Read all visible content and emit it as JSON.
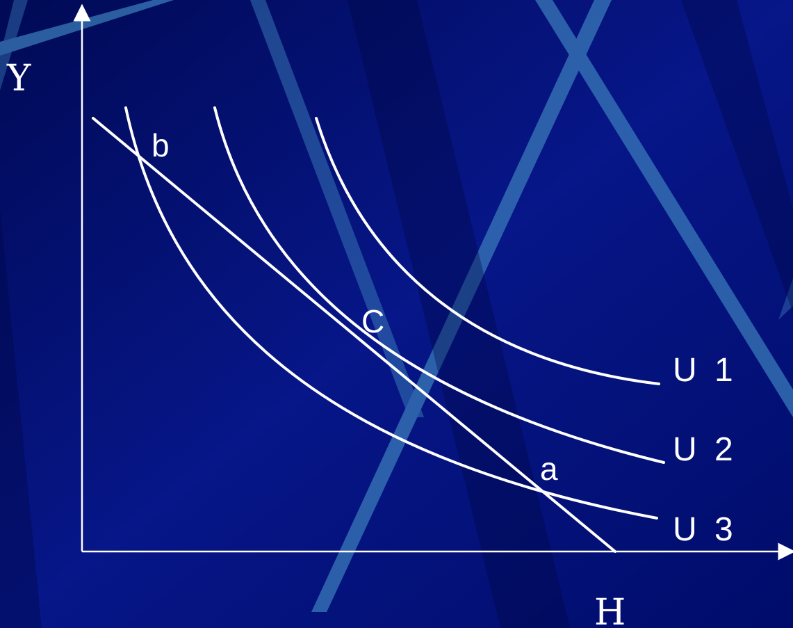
{
  "colors": {
    "background_dark": "#000a55",
    "background_mid": "#0a1a8a",
    "accent_stripe": "#3a7ab8",
    "line": "#ffffff"
  },
  "axes": {
    "y_label": "Y",
    "x_label": "H"
  },
  "points": {
    "b": "b",
    "c": "C",
    "a": "a"
  },
  "curves": {
    "u1": "U 1",
    "u2": "U 2",
    "u3": "U 3"
  }
}
